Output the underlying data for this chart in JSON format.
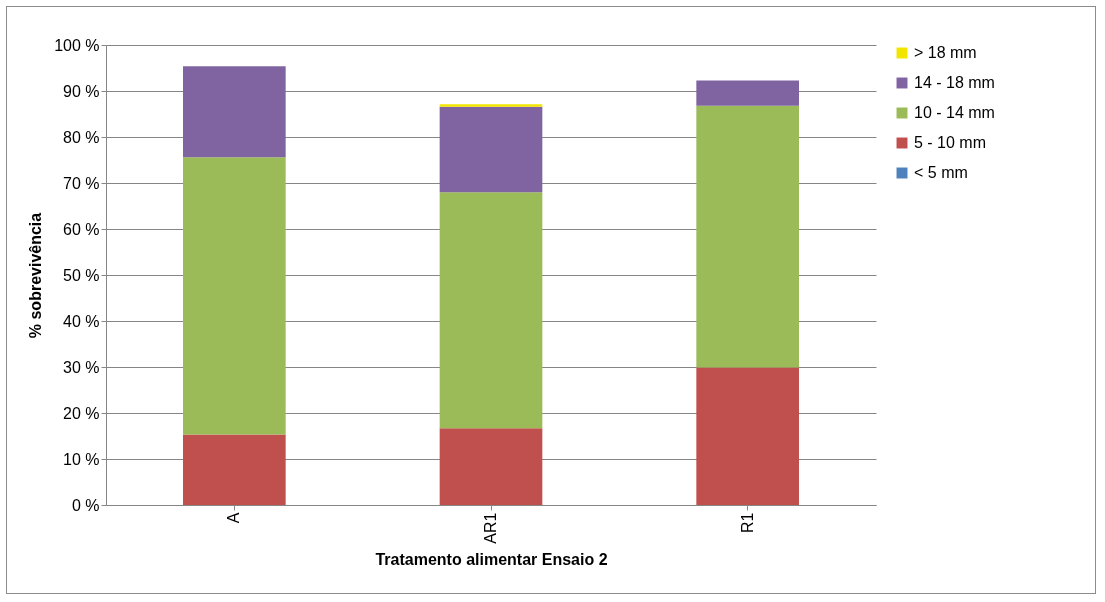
{
  "chart_data": {
    "type": "bar",
    "stacked": true,
    "xlabel": "Tratamento alimentar Ensaio 2",
    "ylabel": "% sobrevivência",
    "categories": [
      "A",
      "AR1",
      "R1"
    ],
    "series": [
      {
        "name": "< 5 mm",
        "color": "#4f81bd",
        "values": [
          0,
          0,
          0
        ]
      },
      {
        "name": "5 - 10 mm",
        "color": "#c0504d",
        "values": [
          15.3,
          16.7,
          29.9
        ]
      },
      {
        "name": "10 - 14 mm",
        "color": "#9bbb59",
        "values": [
          60.3,
          51.3,
          56.9
        ]
      },
      {
        "name": "14 - 18 mm",
        "color": "#8064a2",
        "values": [
          19.8,
          18.6,
          5.5
        ]
      },
      {
        "name": "> 18 mm",
        "color": "#f2e600",
        "values": [
          0,
          0.5,
          0
        ]
      }
    ],
    "ylim": [
      0,
      100
    ],
    "yticks": [
      {
        "value": 0,
        "label": "0 %"
      },
      {
        "value": 10,
        "label": "10 %"
      },
      {
        "value": 20,
        "label": "20 %"
      },
      {
        "value": 30,
        "label": "30 %"
      },
      {
        "value": 40,
        "label": "40 %"
      },
      {
        "value": 50,
        "label": "50 %"
      },
      {
        "value": 60,
        "label": "60 %"
      },
      {
        "value": 70,
        "label": "70 %"
      },
      {
        "value": 80,
        "label": "80 %"
      },
      {
        "value": 90,
        "label": "90 %"
      },
      {
        "value": 100,
        "label": "100 %"
      }
    ],
    "grid": "y",
    "legend": "right"
  }
}
